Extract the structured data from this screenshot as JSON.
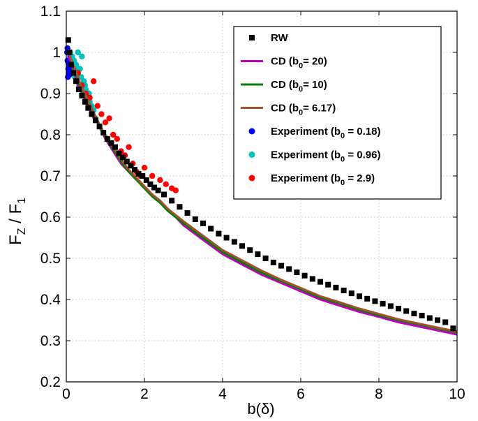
{
  "chart_data": {
    "type": "line",
    "xlabel": "b(δ)",
    "ylabel": "F_Z / F_1",
    "xlim": [
      0,
      10
    ],
    "ylim": [
      0.2,
      1.1
    ],
    "xticks": [
      0,
      2,
      4,
      6,
      8,
      10
    ],
    "yticks": [
      0.2,
      0.3,
      0.4,
      0.5,
      0.6,
      0.7,
      0.8,
      0.9,
      1,
      1.1
    ],
    "xtick_labels": [
      "0",
      "2",
      "4",
      "6",
      "8",
      "10"
    ],
    "ytick_labels": [
      "0.2",
      "0.3",
      "0.4",
      "0.5",
      "0.6",
      "0.7",
      "0.8",
      "0.9",
      "1",
      "1.1"
    ],
    "grid": true,
    "legend_position": "top-right",
    "series": [
      {
        "name": "RW",
        "kind": "square-markers",
        "color": "#000000",
        "x": [
          0.05,
          0.08,
          0.12,
          0.18,
          0.25,
          0.32,
          0.4,
          0.48,
          0.56,
          0.65,
          0.75,
          0.85,
          0.95,
          1.05,
          1.15,
          1.25,
          1.35,
          1.45,
          1.55,
          1.65,
          1.75,
          1.85,
          1.95,
          2.05,
          2.15,
          2.25,
          2.35,
          2.5,
          2.7,
          2.9,
          3.1,
          3.3,
          3.5,
          3.7,
          3.9,
          4.1,
          4.3,
          4.5,
          4.7,
          4.9,
          5.1,
          5.3,
          5.5,
          5.7,
          5.9,
          6.1,
          6.3,
          6.5,
          6.7,
          6.9,
          7.1,
          7.3,
          7.5,
          7.7,
          7.9,
          8.1,
          8.3,
          8.5,
          8.7,
          8.9,
          9.1,
          9.3,
          9.5,
          9.7,
          9.9
        ],
        "y": [
          1.03,
          1.0,
          0.97,
          0.95,
          0.93,
          0.91,
          0.895,
          0.88,
          0.865,
          0.85,
          0.835,
          0.82,
          0.805,
          0.79,
          0.78,
          0.77,
          0.755,
          0.745,
          0.735,
          0.725,
          0.715,
          0.705,
          0.7,
          0.69,
          0.68,
          0.672,
          0.665,
          0.655,
          0.64,
          0.625,
          0.61,
          0.595,
          0.585,
          0.572,
          0.56,
          0.55,
          0.54,
          0.53,
          0.52,
          0.51,
          0.5,
          0.49,
          0.482,
          0.474,
          0.466,
          0.458,
          0.45,
          0.443,
          0.436,
          0.429,
          0.422,
          0.415,
          0.408,
          0.402,
          0.396,
          0.39,
          0.384,
          0.378,
          0.372,
          0.366,
          0.361,
          0.355,
          0.35,
          0.345,
          0.33
        ]
      },
      {
        "name": "CD (b₀= 20)",
        "kind": "line",
        "color": "#bf00bf",
        "x": [
          0.05,
          0.1,
          0.2,
          0.3,
          0.4,
          0.5,
          0.6,
          0.7,
          0.8,
          0.9,
          1.0,
          1.2,
          1.4,
          1.6,
          1.8,
          2.0,
          2.2,
          2.4,
          2.6,
          2.8,
          3.0,
          3.5,
          4.0,
          4.5,
          5.0,
          5.5,
          6.0,
          6.5,
          7.0,
          7.5,
          8.0,
          8.5,
          9.0,
          9.5,
          10.0
        ],
        "y": [
          0.99,
          0.98,
          0.95,
          0.92,
          0.9,
          0.88,
          0.86,
          0.84,
          0.83,
          0.81,
          0.79,
          0.76,
          0.73,
          0.71,
          0.69,
          0.675,
          0.655,
          0.64,
          0.62,
          0.6,
          0.58,
          0.545,
          0.51,
          0.485,
          0.46,
          0.44,
          0.42,
          0.4,
          0.385,
          0.37,
          0.358,
          0.345,
          0.335,
          0.325,
          0.315
        ]
      },
      {
        "name": "CD (b₀= 10)",
        "kind": "line",
        "color": "#008000",
        "x": [
          0.05,
          0.1,
          0.2,
          0.3,
          0.4,
          0.5,
          0.6,
          0.7,
          0.8,
          0.9,
          1.0,
          1.2,
          1.4,
          1.6,
          1.8,
          2.0,
          2.2,
          2.4,
          2.6,
          2.8,
          3.0,
          3.5,
          4.0,
          4.5,
          5.0,
          5.5,
          6.0,
          6.5,
          7.0,
          7.5,
          8.0,
          8.5,
          9.0,
          9.5,
          10.0
        ],
        "y": [
          1.0,
          0.99,
          0.96,
          0.93,
          0.91,
          0.89,
          0.87,
          0.85,
          0.83,
          0.81,
          0.795,
          0.765,
          0.735,
          0.71,
          0.69,
          0.67,
          0.65,
          0.635,
          0.615,
          0.6,
          0.585,
          0.55,
          0.515,
          0.49,
          0.465,
          0.445,
          0.425,
          0.405,
          0.39,
          0.375,
          0.362,
          0.35,
          0.34,
          0.33,
          0.32
        ]
      },
      {
        "name": "CD (b₀= 6.17)",
        "kind": "line",
        "color": "#a0522d",
        "x": [
          0.05,
          0.1,
          0.2,
          0.3,
          0.4,
          0.5,
          0.6,
          0.7,
          0.8,
          0.9,
          1.0,
          1.2,
          1.4,
          1.6,
          1.8,
          2.0,
          2.2,
          2.4,
          2.6,
          2.8,
          3.0,
          3.5,
          4.0,
          4.5,
          5.0,
          5.5,
          6.0,
          6.5,
          7.0,
          7.5,
          8.0,
          8.5,
          9.0,
          9.5,
          10.0
        ],
        "y": [
          1.0,
          0.99,
          0.965,
          0.94,
          0.915,
          0.895,
          0.875,
          0.855,
          0.835,
          0.815,
          0.8,
          0.77,
          0.74,
          0.715,
          0.695,
          0.675,
          0.655,
          0.64,
          0.62,
          0.605,
          0.59,
          0.555,
          0.52,
          0.495,
          0.47,
          0.448,
          0.428,
          0.408,
          0.393,
          0.378,
          0.365,
          0.352,
          0.342,
          0.332,
          0.322
        ]
      },
      {
        "name": "Experiment (b₀ = 0.18)",
        "kind": "dots",
        "color": "#0000ff",
        "x": [
          0.02,
          0.03,
          0.05,
          0.06,
          0.08,
          0.1,
          0.12,
          0.04,
          0.07,
          0.09,
          0.11,
          0.03,
          0.05,
          0.08
        ],
        "y": [
          1.0,
          0.98,
          0.96,
          0.95,
          0.97,
          0.99,
          0.96,
          0.94,
          0.955,
          0.965,
          0.99,
          1.01,
          0.975,
          0.945
        ]
      },
      {
        "name": "Experiment (b₀ = 0.96)",
        "kind": "dots",
        "color": "#00bfbf",
        "x": [
          0.1,
          0.15,
          0.2,
          0.25,
          0.3,
          0.35,
          0.4,
          0.45,
          0.5,
          0.55,
          0.6,
          0.65,
          0.7,
          0.75,
          0.18,
          0.22,
          0.28,
          0.33,
          0.38,
          0.42,
          0.48,
          0.52,
          0.58
        ],
        "y": [
          1.0,
          0.99,
          0.98,
          0.97,
          1.0,
          0.96,
          0.99,
          0.93,
          0.91,
          0.9,
          0.88,
          0.87,
          0.86,
          0.84,
          0.95,
          0.94,
          0.96,
          0.92,
          0.94,
          0.91,
          0.92,
          0.89,
          0.9
        ]
      },
      {
        "name": "Experiment (b₀ = 2.9)",
        "kind": "dots",
        "color": "#ff0000",
        "x": [
          0.3,
          0.4,
          0.5,
          0.6,
          0.7,
          0.8,
          0.9,
          1.0,
          1.1,
          1.2,
          1.3,
          1.4,
          1.5,
          1.6,
          1.7,
          1.8,
          1.9,
          2.0,
          2.2,
          2.4,
          2.55,
          2.7,
          2.8
        ],
        "y": [
          0.95,
          0.92,
          0.9,
          0.89,
          0.93,
          0.87,
          0.85,
          0.83,
          0.84,
          0.8,
          0.79,
          0.76,
          0.75,
          0.77,
          0.73,
          0.71,
          0.7,
          0.72,
          0.7,
          0.69,
          0.68,
          0.67,
          0.665
        ]
      }
    ]
  }
}
